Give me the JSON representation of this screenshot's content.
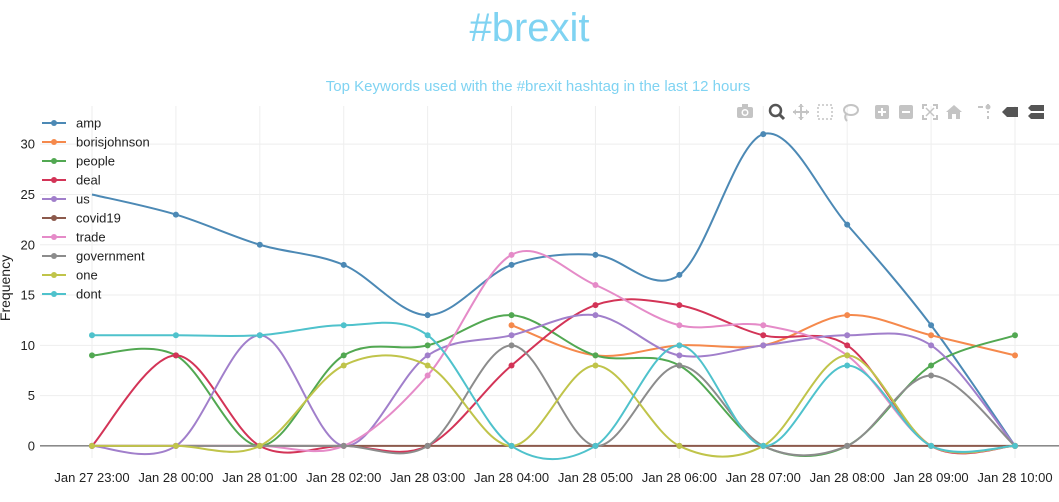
{
  "page": {
    "title": "#brexit"
  },
  "toolbar": {
    "buttons": [
      {
        "icon": "camera-icon",
        "label": "Download plot as a png"
      },
      {
        "icon": "zoom-icon",
        "label": "Zoom",
        "active": true
      },
      {
        "icon": "pan-icon",
        "label": "Pan"
      },
      {
        "icon": "box-select-icon",
        "label": "Box Select"
      },
      {
        "icon": "lasso-select-icon",
        "label": "Lasso Select"
      },
      {
        "icon": "zoom-in-icon",
        "label": "Zoom in"
      },
      {
        "icon": "zoom-out-icon",
        "label": "Zoom out"
      },
      {
        "icon": "autoscale-icon",
        "label": "Autoscale"
      },
      {
        "icon": "home-icon",
        "label": "Reset axes"
      },
      {
        "icon": "spike-lines-icon",
        "label": "Toggle Spike Lines"
      },
      {
        "icon": "hover-closest-icon",
        "label": "Show closest data on hover"
      },
      {
        "icon": "hover-compare-icon",
        "label": "Compare data on hover"
      }
    ]
  },
  "chart_data": {
    "type": "line",
    "title": "Top Keywords used with the #brexit hashtag in the last 12 hours",
    "xlabel": "",
    "ylabel": "Frequency",
    "x": [
      "Jan 27 23:00",
      "Jan 28 00:00",
      "Jan 28 01:00",
      "Jan 28 02:00",
      "Jan 28 03:00",
      "Jan 28 04:00",
      "Jan 28 05:00",
      "Jan 28 06:00",
      "Jan 28 07:00",
      "Jan 28 08:00",
      "Jan 28 09:00",
      "Jan 28 10:00"
    ],
    "xticks": [
      "Jan 27 23:00",
      "Jan 28 00:00",
      "Jan 28 01:00",
      "Jan 28 02:00",
      "Jan 28 03:00",
      "Jan 28 04:00",
      "Jan 28 05:00",
      "Jan 28 06:00",
      "Jan 28 07:00",
      "Jan 28 08:00",
      "Jan 28 09:00",
      "Jan 28 10:00"
    ],
    "yticks": [
      0,
      5,
      10,
      15,
      20,
      25,
      30
    ],
    "ylim": [
      -1.2,
      33
    ],
    "grid": true,
    "legend_position": "top-left",
    "line_shape": "spline",
    "series": [
      {
        "name": "amp",
        "color": "#4c89b5",
        "values": [
          25,
          23,
          20,
          18,
          13,
          18,
          19,
          17,
          31,
          22,
          12,
          0
        ]
      },
      {
        "name": "borisjohnson",
        "color": "#f5894c",
        "values": [
          null,
          null,
          null,
          null,
          null,
          12,
          9,
          10,
          10,
          13,
          11,
          9
        ]
      },
      {
        "name": "people",
        "color": "#52a852",
        "values": [
          9,
          9,
          0,
          9,
          10,
          13,
          9,
          8,
          0,
          0,
          8,
          11
        ]
      },
      {
        "name": "deal",
        "color": "#d33457",
        "values": [
          0,
          9,
          0,
          0,
          0,
          8,
          14,
          14,
          11,
          10,
          0,
          0
        ]
      },
      {
        "name": "us",
        "color": "#a17fcb",
        "values": [
          0,
          0,
          11,
          0,
          9,
          11,
          13,
          9,
          10,
          11,
          10,
          0
        ]
      },
      {
        "name": "covid19",
        "color": "#8c5a4c",
        "values": [
          0,
          0,
          0,
          0,
          0,
          0,
          0,
          0,
          0,
          0,
          0,
          0
        ]
      },
      {
        "name": "trade",
        "color": "#e58bc8",
        "values": [
          0,
          0,
          0,
          0,
          7,
          19,
          16,
          12,
          12,
          9,
          0,
          0
        ]
      },
      {
        "name": "government",
        "color": "#8c8c8c",
        "values": [
          0,
          0,
          0,
          0,
          0,
          10,
          0,
          8,
          0,
          0,
          7,
          0
        ]
      },
      {
        "name": "one",
        "color": "#c0c44a",
        "values": [
          0,
          0,
          0,
          8,
          8,
          0,
          8,
          0,
          0,
          9,
          0,
          0
        ]
      },
      {
        "name": "dont",
        "color": "#4fc2cc",
        "values": [
          11,
          11,
          11,
          12,
          11,
          0,
          0,
          10,
          0,
          8,
          0,
          0
        ]
      }
    ]
  }
}
